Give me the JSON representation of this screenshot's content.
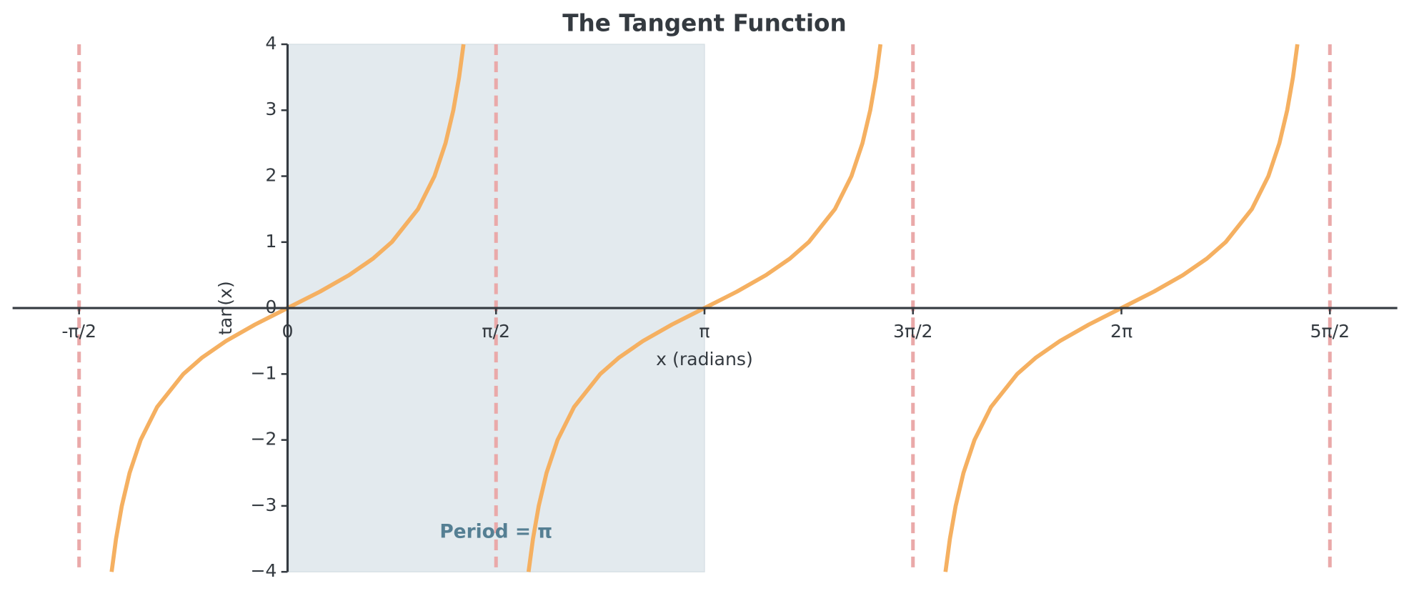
{
  "chart_data": {
    "type": "line",
    "title": "The Tangent Function",
    "xlabel": "x (radians)",
    "ylabel": "tan(x)",
    "x": [
      -1.3258,
      -1.2925,
      -1.249,
      -1.1903,
      -1.1071,
      -0.9828,
      -0.7854,
      -0.6435,
      -0.4636,
      -0.245,
      0,
      0.245,
      0.4636,
      0.6435,
      0.7854,
      0.9828,
      1.1071,
      1.1903,
      1.249,
      1.2925,
      1.3258,
      1.5708,
      1.8158,
      1.8491,
      1.8926,
      1.9513,
      2.0345,
      2.1588,
      2.3562,
      2.4981,
      2.678,
      2.8966,
      3.1416,
      3.3866,
      3.6052,
      3.7851,
      3.927,
      4.1244,
      4.2487,
      4.3319,
      4.3906,
      4.4341,
      4.4674,
      4.7124,
      4.9574,
      4.9907,
      5.0342,
      5.0929,
      5.1761,
      5.3004,
      5.4978,
      5.6397,
      5.8196,
      6.0382,
      6.2832,
      6.5282,
      6.7468,
      6.9267,
      7.0686,
      7.266,
      7.3903,
      7.4735,
      7.5322,
      7.5757,
      7.609
    ],
    "series": [
      {
        "color": "#f5b061",
        "values": [
          -4,
          -3.5,
          -3,
          -2.5,
          -2,
          -1.5,
          -1,
          -0.75,
          -0.5,
          -0.25,
          0,
          0.25,
          0.5,
          0.75,
          1,
          1.5,
          2,
          2.5,
          3,
          3.5,
          4,
          null,
          -4,
          -3.5,
          -3,
          -2.5,
          -2,
          -1.5,
          -1,
          -0.75,
          -0.5,
          -0.25,
          0,
          0.25,
          0.5,
          0.75,
          1,
          1.5,
          2,
          2.5,
          3,
          3.5,
          4,
          null,
          -4,
          -3.5,
          -3,
          -2.5,
          -2,
          -1.5,
          -1,
          -0.75,
          -0.5,
          -0.25,
          0,
          0.25,
          0.5,
          0.75,
          1,
          1.5,
          2,
          2.5,
          3,
          3.5,
          4
        ]
      }
    ],
    "xlim": [
      -2.072,
      8.362
    ],
    "ylim": [
      -4,
      4
    ],
    "xticks": [
      {
        "value": -1.5708,
        "label": "-π/2"
      },
      0,
      {
        "value": 1.5708,
        "label": "π/2"
      },
      {
        "value": 3.1416,
        "label": "π"
      },
      {
        "value": 4.7124,
        "label": "3π/2"
      },
      {
        "value": 6.2832,
        "label": "2π"
      },
      {
        "value": 7.854,
        "label": "5π/2"
      }
    ],
    "yticks": [
      {
        "value": -4,
        "label": "−4"
      },
      {
        "value": -3,
        "label": "−3"
      },
      {
        "value": -2,
        "label": "−2"
      },
      {
        "value": -1,
        "label": "−1"
      },
      0,
      1,
      2,
      3,
      4
    ],
    "asymptotes": [
      -1.5708,
      1.5708,
      4.7124,
      7.854
    ],
    "asymptote_color": "#eaa9a9",
    "shade": [
      0,
      3.1416
    ],
    "shade_color": "#e3eaee",
    "annotation": {
      "text": "Period = π",
      "x": 1.5708,
      "y": -3.4,
      "color": "#557f93"
    }
  }
}
